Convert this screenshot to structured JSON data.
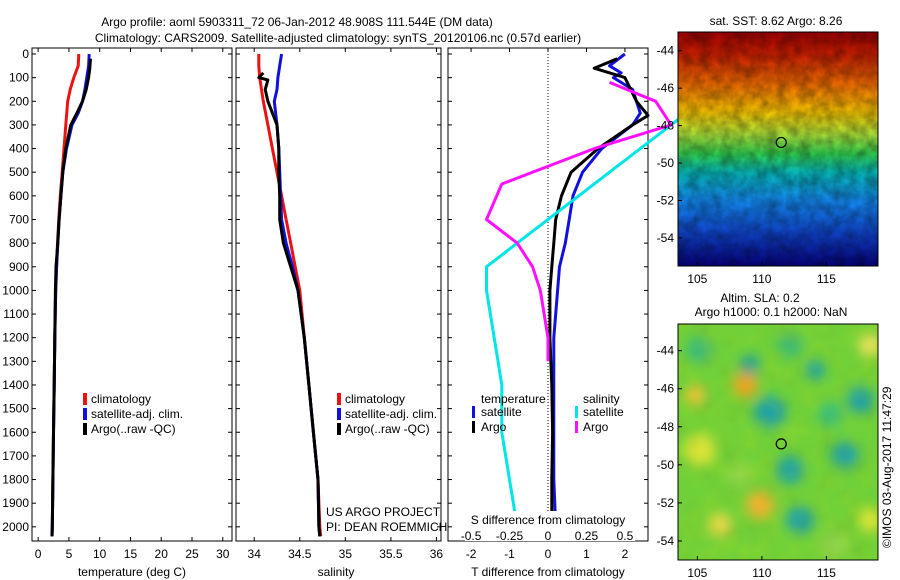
{
  "header": {
    "title_line1": "Argo profile: aoml 5903311_72 06-Jan-2012 48.908S 111.544E (DM data)",
    "title_line2": "Climatology: CARS2009. Satellite-adjusted climatology: synTS_20120106.nc (0.57d earlier)"
  },
  "colors": {
    "climatology": "#ee1111",
    "satellite": "#1111dd",
    "argo": "#000000",
    "cyan": "#00e5e5",
    "magenta": "#ff11ff"
  },
  "chart_data": [
    {
      "type": "line",
      "id": "temperature",
      "xlabel": "temperature (deg C)",
      "ylabel": "",
      "xlim": [
        -1,
        31.5
      ],
      "ylim": [
        2060,
        0
      ],
      "xticks": [
        0,
        5,
        10,
        15,
        20,
        25,
        30
      ],
      "yticks": [
        0,
        100,
        200,
        300,
        400,
        500,
        600,
        700,
        800,
        900,
        1000,
        1100,
        1200,
        1300,
        1400,
        1500,
        1600,
        1700,
        1800,
        1900,
        2000
      ],
      "legend": [
        "climatology",
        "satellite-adj. clim.",
        "Argo(..raw -QC)"
      ],
      "series": [
        {
          "name": "climatology",
          "color": "#ee1111",
          "points": [
            [
              6.6,
              0
            ],
            [
              6.5,
              50
            ],
            [
              5.8,
              100
            ],
            [
              5.2,
              150
            ],
            [
              4.8,
              200
            ],
            [
              4.5,
              300
            ],
            [
              4.2,
              400
            ],
            [
              3.9,
              500
            ],
            [
              3.6,
              600
            ],
            [
              3.35,
              700
            ],
            [
              3.15,
              800
            ],
            [
              3.0,
              900
            ],
            [
              2.85,
              1000
            ],
            [
              2.7,
              1200
            ],
            [
              2.6,
              1400
            ],
            [
              2.5,
              1600
            ],
            [
              2.4,
              1800
            ],
            [
              2.3,
              2000
            ],
            [
              2.25,
              2040
            ]
          ]
        },
        {
          "name": "satellite-adj. clim.",
          "color": "#1111dd",
          "points": [
            [
              8.3,
              0
            ],
            [
              8.2,
              50
            ],
            [
              7.9,
              100
            ],
            [
              7.6,
              150
            ],
            [
              7.2,
              200
            ],
            [
              6.5,
              250
            ],
            [
              5.5,
              300
            ],
            [
              4.6,
              400
            ],
            [
              4.0,
              500
            ],
            [
              3.7,
              600
            ],
            [
              3.4,
              700
            ],
            [
              3.2,
              800
            ],
            [
              3.0,
              900
            ],
            [
              2.85,
              1000
            ],
            [
              2.7,
              1200
            ],
            [
              2.6,
              1400
            ],
            [
              2.5,
              1600
            ],
            [
              2.4,
              1800
            ],
            [
              2.3,
              2000
            ],
            [
              2.25,
              2040
            ]
          ]
        },
        {
          "name": "Argo(..raw -QC)",
          "color": "#000000",
          "points": [
            [
              8.5,
              20
            ],
            [
              8.4,
              60
            ],
            [
              8.2,
              100
            ],
            [
              7.8,
              150
            ],
            [
              7.2,
              200
            ],
            [
              6.3,
              250
            ],
            [
              5.3,
              300
            ],
            [
              4.5,
              400
            ],
            [
              4.0,
              500
            ],
            [
              3.7,
              600
            ],
            [
              3.4,
              700
            ],
            [
              3.2,
              800
            ],
            [
              2.9,
              900
            ],
            [
              2.8,
              1000
            ],
            [
              2.7,
              1200
            ],
            [
              2.6,
              1400
            ],
            [
              2.5,
              1600
            ],
            [
              2.4,
              1800
            ],
            [
              2.3,
              2000
            ],
            [
              2.25,
              2040
            ]
          ]
        }
      ]
    },
    {
      "type": "line",
      "id": "salinity",
      "xlabel": "salinity",
      "xlim": [
        33.8,
        36.05
      ],
      "ylim": [
        2060,
        0
      ],
      "xticks": [
        34,
        34.5,
        35,
        35.5,
        36
      ],
      "legend": [
        "climatology",
        "satellite-adj. clim.",
        "Argo(..raw -QC)"
      ],
      "annotation": [
        "US ARGO PROJECT",
        "PI: DEAN ROEMMICH"
      ],
      "series": [
        {
          "name": "climatology",
          "color": "#ee1111",
          "points": [
            [
              34.05,
              0
            ],
            [
              34.05,
              50
            ],
            [
              34.06,
              100
            ],
            [
              34.1,
              200
            ],
            [
              34.15,
              300
            ],
            [
              34.2,
              400
            ],
            [
              34.25,
              500
            ],
            [
              34.3,
              600
            ],
            [
              34.35,
              700
            ],
            [
              34.4,
              800
            ],
            [
              34.45,
              900
            ],
            [
              34.5,
              1000
            ],
            [
              34.55,
              1200
            ],
            [
              34.6,
              1400
            ],
            [
              34.65,
              1600
            ],
            [
              34.7,
              1800
            ],
            [
              34.72,
              2000
            ],
            [
              34.73,
              2040
            ]
          ]
        },
        {
          "name": "satellite-adj. clim.",
          "color": "#1111dd",
          "points": [
            [
              34.3,
              0
            ],
            [
              34.28,
              50
            ],
            [
              34.26,
              100
            ],
            [
              34.25,
              150
            ],
            [
              34.22,
              200
            ],
            [
              34.25,
              300
            ],
            [
              34.27,
              400
            ],
            [
              34.28,
              500
            ],
            [
              34.29,
              600
            ],
            [
              34.3,
              700
            ],
            [
              34.35,
              800
            ],
            [
              34.42,
              900
            ],
            [
              34.48,
              1000
            ],
            [
              34.55,
              1200
            ],
            [
              34.6,
              1400
            ],
            [
              34.65,
              1600
            ],
            [
              34.7,
              1800
            ],
            [
              34.71,
              2000
            ],
            [
              34.72,
              2040
            ]
          ]
        },
        {
          "name": "Argo(..raw -QC)",
          "color": "#000000",
          "points": [
            [
              34.1,
              80
            ],
            [
              34.05,
              100
            ],
            [
              34.15,
              110
            ],
            [
              34.12,
              150
            ],
            [
              34.15,
              200
            ],
            [
              34.25,
              300
            ],
            [
              34.27,
              400
            ],
            [
              34.27,
              500
            ],
            [
              34.28,
              600
            ],
            [
              34.28,
              700
            ],
            [
              34.32,
              800
            ],
            [
              34.4,
              900
            ],
            [
              34.48,
              1000
            ],
            [
              34.55,
              1200
            ],
            [
              34.6,
              1400
            ],
            [
              34.65,
              1600
            ],
            [
              34.7,
              1800
            ],
            [
              34.71,
              2000
            ],
            [
              34.72,
              2040
            ]
          ]
        }
      ]
    },
    {
      "type": "line",
      "id": "differences",
      "xlabel": "T difference from climatology",
      "xlabel_top": "S difference from climatology",
      "xlim": [
        -2.6,
        2.6
      ],
      "ylim": [
        2060,
        0
      ],
      "xticks": [
        -2,
        -1,
        0,
        1,
        2
      ],
      "xticks_s": [
        -0.5,
        -0.25,
        0,
        0.25,
        0.5
      ],
      "xticks_s_labels": [
        "-0.5",
        "-0.25",
        "0",
        "0.25",
        "0.5"
      ],
      "legend": {
        "temperature_header": "temperature",
        "salinity_header": "salinity",
        "items": [
          {
            "group": "temperature",
            "name": "satellite",
            "color": "#1111dd"
          },
          {
            "group": "temperature",
            "name": "Argo",
            "color": "#000000"
          },
          {
            "group": "salinity",
            "name": "satellite",
            "color": "#00e5e5"
          },
          {
            "group": "salinity",
            "name": "Argo",
            "color": "#ff11ff"
          }
        ]
      },
      "series": [
        {
          "name": "temperature satellite",
          "color": "#1111dd",
          "points": [
            [
              2.0,
              0
            ],
            [
              1.6,
              50
            ],
            [
              1.9,
              80
            ],
            [
              1.7,
              100
            ],
            [
              2.2,
              150
            ],
            [
              2.4,
              250
            ],
            [
              2.2,
              300
            ],
            [
              1.4,
              400
            ],
            [
              0.9,
              500
            ],
            [
              0.65,
              600
            ],
            [
              0.55,
              700
            ],
            [
              0.45,
              800
            ],
            [
              0.3,
              900
            ],
            [
              0.25,
              1000
            ],
            [
              0.15,
              1200
            ],
            [
              0.15,
              1400
            ],
            [
              0.15,
              1600
            ],
            [
              0.15,
              1800
            ],
            [
              0.2,
              2000
            ],
            [
              0.2,
              2040
            ]
          ]
        },
        {
          "name": "temperature Argo",
          "color": "#000000",
          "points": [
            [
              1.8,
              20
            ],
            [
              1.2,
              60
            ],
            [
              2.0,
              100
            ],
            [
              2.3,
              200
            ],
            [
              2.6,
              260
            ],
            [
              2.2,
              300
            ],
            [
              1.3,
              400
            ],
            [
              0.6,
              500
            ],
            [
              0.35,
              600
            ],
            [
              0.2,
              700
            ],
            [
              0.15,
              800
            ],
            [
              0.1,
              900
            ],
            [
              0.05,
              1000
            ],
            [
              0.05,
              1200
            ],
            [
              0.1,
              1400
            ],
            [
              0.12,
              1600
            ],
            [
              0.1,
              1800
            ],
            [
              0.1,
              2000
            ],
            [
              0.1,
              2040
            ]
          ]
        },
        {
          "name": "salinity satellite",
          "color": "#00e5e5",
          "points": [
            [
              1.1,
              50
            ],
            [
              0.9,
              100
            ],
            [
              1.0,
              150
            ],
            [
              0.9,
              250
            ],
            [
              0.6,
              400
            ],
            [
              0.4,
              500
            ],
            [
              0.2,
              600
            ],
            [
              -0.2,
              800
            ],
            [
              -0.4,
              900
            ],
            [
              -0.4,
              1000
            ],
            [
              -0.35,
              1200
            ],
            [
              -0.3,
              1400
            ],
            [
              -0.3,
              1600
            ],
            [
              -0.25,
              1800
            ],
            [
              -0.2,
              2000
            ],
            [
              -0.2,
              2040
            ]
          ]
        },
        {
          "name": "salinity Argo",
          "color": "#ff11ff",
          "points": [
            [
              0.4,
              120
            ],
            [
              0.7,
              200
            ],
            [
              0.8,
              300
            ],
            [
              0.3,
              400
            ],
            [
              -0.3,
              550
            ],
            [
              -0.4,
              700
            ],
            [
              -0.2,
              800
            ],
            [
              -0.1,
              900
            ],
            [
              -0.05,
              1000
            ],
            [
              0.0,
              1200
            ],
            [
              0.0,
              1300
            ]
          ]
        }
      ]
    },
    {
      "type": "heatmap",
      "id": "sst_map",
      "title": "sat. SST: 8.62 Argo: 8.26",
      "xlim": [
        103.5,
        119
      ],
      "ylim": [
        -55.5,
        -43
      ],
      "xticks": [
        105,
        110,
        115
      ],
      "yticks": [
        -44,
        -46,
        -48,
        -50,
        -52,
        -54
      ],
      "marker": [
        111.5,
        -48.9
      ]
    },
    {
      "type": "heatmap",
      "id": "sla_map",
      "title": "Altim. SLA: 0.2",
      "subtitle": "Argo h1000: 0.1 h2000: NaN",
      "xlim": [
        103.5,
        119
      ],
      "ylim": [
        -55,
        -42.6
      ],
      "xticks": [
        105,
        110,
        115
      ],
      "yticks": [
        -44,
        -46,
        -48,
        -50,
        -52,
        -54
      ],
      "marker": [
        111.5,
        -48.9
      ]
    }
  ],
  "side_text": "©IMOS 03-Aug-2017 11:47:29"
}
